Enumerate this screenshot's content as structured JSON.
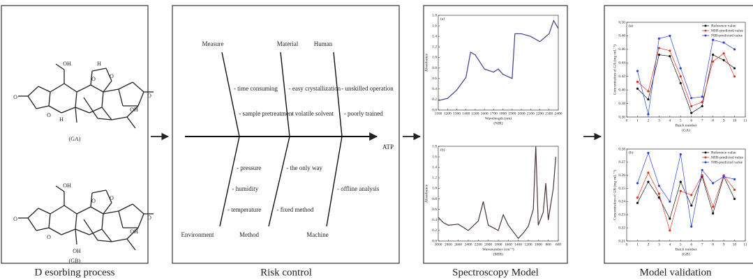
{
  "captions": [
    "D esorbing process",
    "Risk control",
    "Spectroscopy Model",
    "Model validation"
  ],
  "structures": [
    {
      "label": "(GA)",
      "atoms": [
        "OH",
        "H",
        "O",
        "O",
        "O",
        "O",
        "O",
        "OH",
        "H"
      ]
    },
    {
      "label": "(GB)",
      "atoms": [
        "OH",
        "O",
        "O",
        "O",
        "O",
        "O",
        "OH",
        "OH"
      ]
    }
  ],
  "fishbone": {
    "effect": "ATP",
    "causes": [
      {
        "label": "Measure",
        "items": [
          "- time consuming",
          "- sample pretreatment"
        ]
      },
      {
        "label": "Material",
        "items": [
          "- easy crystallization",
          "- volatile solvent"
        ]
      },
      {
        "label": "Human",
        "items": [
          "- unskilled operation",
          "- poorly trained"
        ]
      },
      {
        "label": "Environment",
        "items": [
          "- pressure",
          "- humidity",
          "- temperature"
        ]
      },
      {
        "label": "Method",
        "items": [
          "- the only way",
          "- fixed method"
        ]
      },
      {
        "label": "Machine",
        "items": [
          "- offline analysis"
        ]
      }
    ]
  },
  "chart_data": [
    {
      "type": "line",
      "panel": "(a)",
      "xlabel": "Wavelength (nm)",
      "ylabel": "Absorbance",
      "caption": "(NIR)",
      "x": [
        1100,
        1200,
        1300,
        1400,
        1450,
        1500,
        1600,
        1700,
        1750,
        1800,
        1900,
        1930,
        2000,
        2100,
        2200,
        2300,
        2350,
        2400
      ],
      "series": [
        {
          "color": "#3a3f8f",
          "values": [
            0.18,
            0.22,
            0.38,
            0.62,
            1.1,
            1.05,
            0.78,
            0.72,
            0.78,
            0.68,
            0.6,
            1.45,
            1.45,
            1.4,
            1.3,
            1.45,
            1.7,
            1.55
          ]
        }
      ],
      "xlim": [
        1100,
        2400
      ],
      "xticks": [
        1100,
        1200,
        1300,
        1400,
        1500,
        1600,
        1700,
        1800,
        1900,
        2000,
        2100,
        2200,
        2300,
        2400
      ],
      "ylim": [
        0,
        1.8
      ],
      "yticks": [
        {
          "value": 0,
          "label": "0.0"
        },
        0.2,
        0.4,
        0.6,
        0.8,
        {
          "value": 1,
          "label": "1.0"
        },
        1.2,
        1.4,
        1.6,
        1.8
      ]
    },
    {
      "type": "line",
      "panel": "(b)",
      "xlabel": "Wavenumber (cm⁻¹)",
      "ylabel": "Absorbance",
      "caption": "(MIR)",
      "x": [
        3000,
        2900,
        2800,
        2600,
        2400,
        2200,
        2100,
        2000,
        1800,
        1700,
        1600,
        1400,
        1300,
        1200,
        1100,
        1050,
        1000,
        900,
        850,
        800,
        700,
        650
      ],
      "series": [
        {
          "color": "#4a3434",
          "values": [
            0.45,
            0.35,
            0.3,
            0.32,
            0.2,
            0.38,
            0.75,
            0.3,
            0.2,
            0.5,
            0.3,
            0.05,
            0.15,
            0.28,
            0.6,
            1.8,
            0.3,
            0.55,
            1.1,
            0.4,
            1.0,
            1.6
          ]
        }
      ],
      "xlim": [
        3000,
        600
      ],
      "xticks": [
        3000,
        2800,
        2600,
        2400,
        2200,
        2000,
        1800,
        1600,
        1400,
        1200,
        1000,
        800,
        600
      ],
      "ylim": [
        0,
        1.8
      ],
      "yticks": [
        {
          "value": 0,
          "label": "0.0"
        },
        0.2,
        0.4,
        0.6,
        0.8,
        {
          "value": 1,
          "label": "1.0"
        },
        1.2,
        1.4,
        1.6,
        1.8
      ]
    },
    {
      "type": "line",
      "panel": "(a)",
      "xlabel": "Batch number",
      "ylabel": "Concentration of GA (mg·mL⁻¹)",
      "caption": "(GA)",
      "markers": true,
      "legend": "top-right",
      "x": [
        1,
        2,
        3,
        4,
        5,
        6,
        7,
        8,
        9,
        10
      ],
      "series": [
        {
          "name": "Reference value",
          "color": "#111111",
          "values": [
            0.402,
            0.386,
            0.452,
            0.45,
            0.41,
            0.366,
            0.376,
            0.452,
            0.444,
            0.432
          ]
        },
        {
          "name": "MIR-predicted value",
          "color": "#e0301e",
          "values": [
            0.412,
            0.398,
            0.462,
            0.458,
            0.42,
            0.376,
            0.382,
            0.442,
            0.454,
            0.42
          ]
        },
        {
          "name": "NIR-predicted value",
          "color": "#2b3fd6",
          "values": [
            0.428,
            0.364,
            0.476,
            0.48,
            0.432,
            0.388,
            0.39,
            0.474,
            0.47,
            0.46
          ]
        }
      ],
      "xlim": [
        0,
        11
      ],
      "xticks": [
        0,
        1,
        2,
        3,
        4,
        5,
        6,
        7,
        8,
        9,
        10,
        11
      ],
      "ylim": [
        0.36,
        0.5
      ],
      "yticks": [
        0.36,
        0.38,
        {
          "value": 0.4,
          "label": "0.40"
        },
        0.42,
        0.44,
        0.46,
        0.48,
        {
          "value": 0.5,
          "label": "0.50"
        }
      ]
    },
    {
      "type": "line",
      "panel": "(b)",
      "xlabel": "Batch number",
      "ylabel": "Concentration of GB (mg·mL⁻¹)",
      "caption": "(GB)",
      "markers": true,
      "legend": "top-right",
      "x": [
        1,
        2,
        3,
        4,
        5,
        6,
        7,
        8,
        9,
        10
      ],
      "series": [
        {
          "name": "Reference value",
          "color": "#111111",
          "values": [
            0.239,
            0.255,
            0.243,
            0.227,
            0.255,
            0.237,
            0.259,
            0.231,
            0.259,
            0.242
          ]
        },
        {
          "name": "MIR-predicted value",
          "color": "#e0301e",
          "values": [
            0.243,
            0.262,
            0.246,
            0.218,
            0.248,
            0.245,
            0.26,
            0.236,
            0.26,
            0.249
          ]
        },
        {
          "name": "NIR-predicted value",
          "color": "#2b3fd6",
          "values": [
            0.254,
            0.277,
            0.252,
            0.24,
            0.276,
            0.221,
            0.264,
            0.254,
            0.259,
            0.257
          ]
        }
      ],
      "xlim": [
        0,
        11
      ],
      "xticks": [
        0,
        1,
        2,
        3,
        4,
        5,
        6,
        7,
        8,
        9,
        10,
        11
      ],
      "ylim": [
        0.21,
        0.28
      ],
      "yticks": [
        0.21,
        0.22,
        0.23,
        0.24,
        0.25,
        0.26,
        0.27,
        0.28
      ]
    }
  ]
}
